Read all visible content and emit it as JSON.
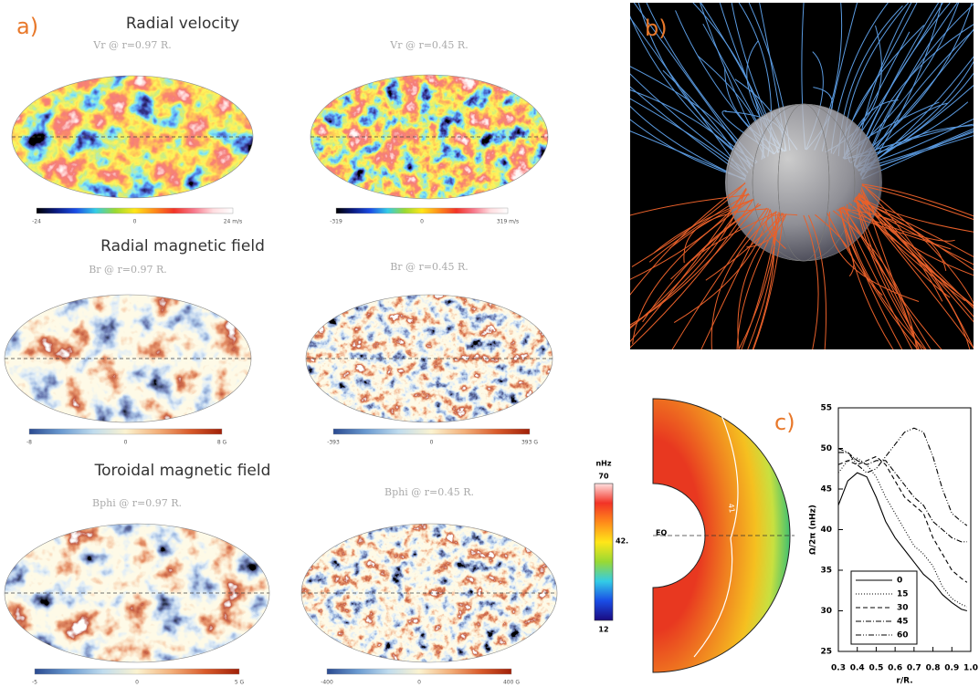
{
  "panel_a": {
    "label": "a)",
    "sections": [
      {
        "title": "Radial velocity",
        "colormap": "rainbow",
        "maps": [
          {
            "caption": "Vr @ r=0.97 R.",
            "colorbar": [
              "-24",
              "0",
              "24 m/s"
            ]
          },
          {
            "caption": "Vr @ r=0.45 R.",
            "colorbar": [
              "-319",
              "0",
              "319 m/s"
            ]
          }
        ]
      },
      {
        "title": "Radial magnetic field",
        "colormap": "bwr",
        "maps": [
          {
            "caption": "Br @ r=0.97 R.",
            "colorbar": [
              "-8",
              "0",
              "8 G"
            ]
          },
          {
            "caption": "Br @ r=0.45 R.",
            "colorbar": [
              "-393",
              "0",
              "393 G"
            ]
          }
        ]
      },
      {
        "title": "Toroidal magnetic field",
        "colormap": "bwr",
        "maps": [
          {
            "caption": "Bphi @ r=0.97 R.",
            "colorbar": [
              "-5",
              "0",
              "5 G"
            ]
          },
          {
            "caption": "Bphi @ r=0.45 R.",
            "colorbar": [
              "-400",
              "0",
              "400 G"
            ]
          }
        ]
      }
    ]
  },
  "panel_b": {
    "label": "b)"
  },
  "panel_c_map": {
    "colorbar_unit": "nHz",
    "colorbar_labels": [
      "70",
      "42.",
      "12"
    ],
    "equator": "EQ",
    "contour": "41"
  },
  "chart_data": {
    "type": "line",
    "label": "c)",
    "xlabel": "r/R.",
    "ylabel": "Ω/2π (nHz)",
    "x": [
      0.3,
      0.35,
      0.4,
      0.45,
      0.5,
      0.55,
      0.6,
      0.65,
      0.7,
      0.75,
      0.8,
      0.85,
      0.9,
      0.95,
      0.98
    ],
    "series": [
      {
        "name": "0",
        "color": "#000000",
        "dash": "solid",
        "values": [
          43,
          46,
          47,
          46.5,
          44,
          41,
          39,
          37.5,
          36,
          34.5,
          33.5,
          32,
          31,
          30.2,
          30
        ]
      },
      {
        "name": "15",
        "color": "#000000",
        "dash": "dotted",
        "values": [
          47,
          48.5,
          48.8,
          48,
          46.5,
          44,
          42,
          40,
          38,
          37,
          35.5,
          33,
          31.5,
          30.8,
          30.5
        ]
      },
      {
        "name": "30",
        "color": "#000000",
        "dash": "dashed",
        "values": [
          48,
          48.5,
          48,
          48.5,
          49,
          48,
          46,
          44,
          43,
          42,
          39,
          37,
          35,
          34,
          33.5
        ]
      },
      {
        "name": "45",
        "color": "#000000",
        "dash": "dashdot",
        "values": [
          50,
          49.5,
          48.5,
          48,
          48.5,
          48.5,
          47,
          45.5,
          44,
          43,
          41,
          40,
          39,
          38.5,
          38.5
        ]
      },
      {
        "name": "60",
        "color": "#000000",
        "dash": "dashdotdot",
        "values": [
          49.5,
          49.5,
          48,
          47,
          47.5,
          49,
          50.5,
          52,
          52.5,
          52,
          49,
          45,
          42,
          41,
          40.5
        ]
      }
    ],
    "xlim": [
      0.3,
      1
    ],
    "xticks": [
      0.3,
      0.4,
      0.5,
      0.6,
      0.7,
      0.8,
      0.9,
      {
        "value": 1,
        "label": "1.0"
      }
    ],
    "ylim": [
      25,
      55
    ],
    "yticks": [
      25,
      30,
      35,
      40,
      45,
      50,
      55
    ],
    "legend": "lower-left"
  }
}
